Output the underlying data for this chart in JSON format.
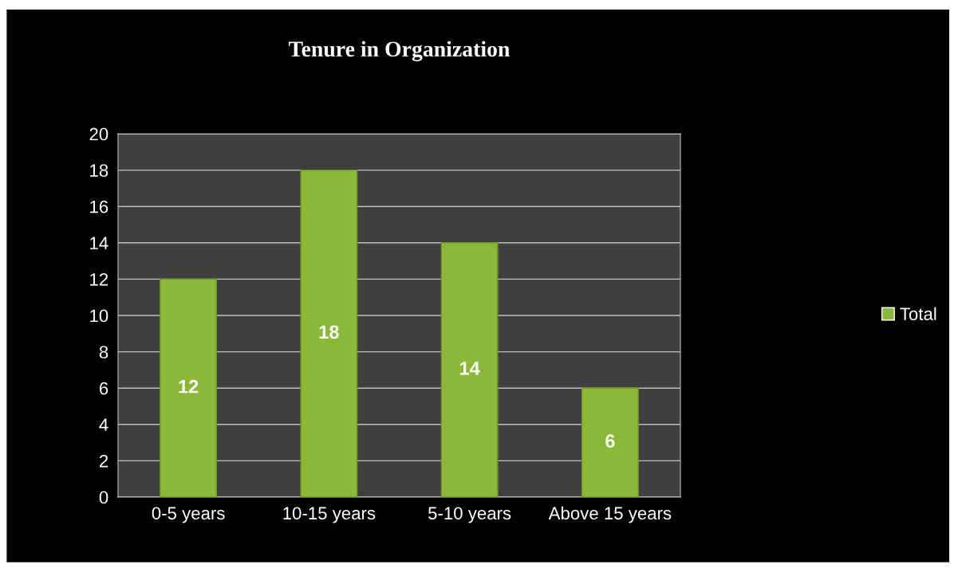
{
  "chart_data": {
    "type": "bar",
    "title": "Tenure in Organization",
    "categories": [
      "0-5 years",
      "10-15 years",
      "5-10 years",
      "Above 15 years"
    ],
    "series": [
      {
        "name": "Total",
        "color": "#8cb83a",
        "values": [
          12,
          18,
          14,
          6
        ]
      }
    ],
    "ylim": [
      0,
      20
    ],
    "yticks": [
      0,
      2,
      4,
      6,
      8,
      10,
      12,
      14,
      16,
      18,
      20
    ],
    "grid": "y",
    "legend": "right",
    "data_labels": true
  }
}
